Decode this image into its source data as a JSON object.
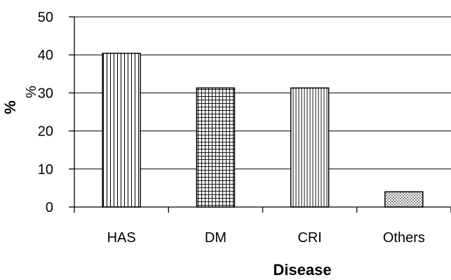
{
  "chart_data": {
    "type": "bar",
    "categories": [
      "HAS",
      "DM",
      "CRI",
      "Others"
    ],
    "values": [
      40.4,
      31.3,
      31.3,
      4.0
    ],
    "title": "",
    "xlabel": "Disease",
    "ylabel": "%",
    "ylabel_overlay": "%",
    "ylim": [
      0,
      50
    ],
    "yticks": [
      0,
      10,
      20,
      30,
      40,
      50
    ],
    "grid": true,
    "legend": "none",
    "patterns": [
      "vertical-lines",
      "grid",
      "vertical-lines-dense",
      "dots"
    ],
    "colors": {
      "stroke": "#000000",
      "grid": "#000000",
      "background": "#ffffff"
    }
  }
}
